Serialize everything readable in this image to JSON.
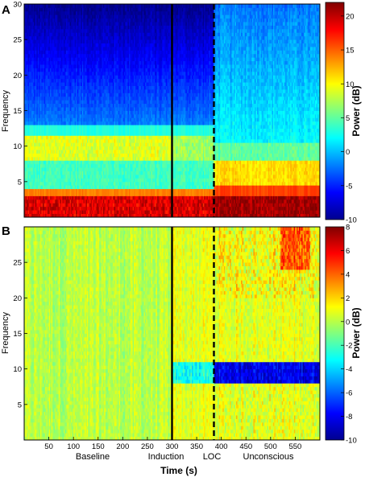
{
  "chart_data": [
    {
      "panel": "A",
      "type": "heatmap",
      "xlabel": "Time (s)",
      "ylabel": "Frequency",
      "colorbar_label": "Power (dB)",
      "xlim": [
        0,
        600
      ],
      "ylim": [
        0,
        30
      ],
      "clim": [
        -10,
        22
      ],
      "y_ticks": [
        5,
        10,
        15,
        20,
        25,
        30
      ],
      "colorbar_ticks": [
        -10,
        -5,
        0,
        5,
        10,
        15,
        20
      ],
      "events": [
        {
          "time": 300,
          "style": "solid"
        },
        {
          "time": 385,
          "style": "dashed"
        }
      ],
      "description_values": {
        "baseline_alpha_band_hz": [
          8,
          11
        ],
        "unconscious_delta_power_db": 20,
        "high_freq_power_db": -8
      }
    },
    {
      "panel": "B",
      "type": "heatmap",
      "xlabel": "Time (s)",
      "ylabel": "Frequency",
      "colorbar_label": "Power (dB)",
      "xlim": [
        0,
        600
      ],
      "ylim": [
        0,
        30
      ],
      "clim": [
        -10,
        8
      ],
      "x_ticks": [
        50,
        100,
        150,
        200,
        250,
        300,
        350,
        400,
        450,
        500,
        550
      ],
      "y_ticks": [
        5,
        10,
        15,
        20,
        25
      ],
      "colorbar_ticks": [
        -10,
        -8,
        -6,
        -4,
        -2,
        0,
        2,
        4,
        6,
        8
      ],
      "events": [
        {
          "time": 300,
          "style": "solid"
        },
        {
          "time": 385,
          "style": "dashed"
        }
      ]
    }
  ],
  "labels": {
    "panel_a": "A",
    "panel_b": "B",
    "ylabel": "Frequency",
    "xlabel": "Time (s)",
    "colorbar": "Power (dB)",
    "phases": [
      "Baseline",
      "Induction",
      "LOC",
      "Unconscious"
    ]
  }
}
